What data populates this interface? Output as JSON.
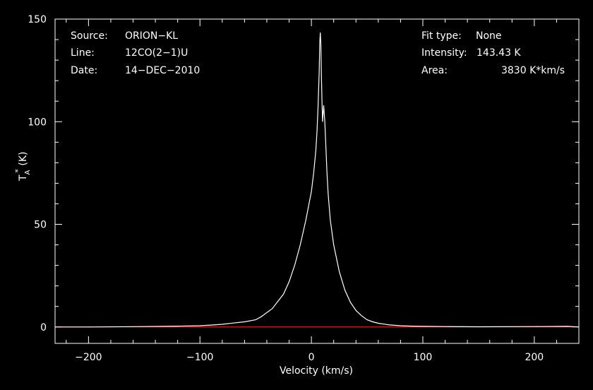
{
  "chart_data": {
    "type": "line",
    "xlabel": "Velocity (km/s)",
    "ylabel_main": "T",
    "ylabel_sub": "A",
    "ylabel_sup": "*",
    "ylabel_unit": " (K)",
    "xlim": [
      -230,
      240
    ],
    "ylim": [
      -8,
      150
    ],
    "xticks": [
      -200,
      -100,
      0,
      100,
      200
    ],
    "xtick_labels": [
      "−200",
      "−100",
      "0",
      "100",
      "200"
    ],
    "yticks": [
      0,
      50,
      100,
      150
    ],
    "ytick_labels": [
      "0",
      "50",
      "100",
      "150"
    ],
    "baseline": 0,
    "colors": {
      "background": "#000000",
      "foreground": "#ffffff",
      "baseline": "#ff2020"
    },
    "info": {
      "source_label": "Source:",
      "source_value": "ORION−KL",
      "line_label": "Line:",
      "line_value": "12CO(2−1)U",
      "date_label": "Date:",
      "date_value": "14−DEC−2010",
      "fit_label": "Fit type:",
      "fit_value": "None",
      "intensity_label": "Intensity:",
      "intensity_value": "143.43 K",
      "area_label": "Area:",
      "area_value": "3830 K*km/s"
    },
    "series": [
      {
        "x": [
          -230,
          -200,
          -150,
          -120,
          -100,
          -90,
          -80,
          -70,
          -60,
          -50,
          -45,
          -40,
          -35,
          -30,
          -25,
          -20,
          -15,
          -10,
          -5,
          0,
          2,
          4,
          5,
          6,
          7,
          7.5,
          8,
          8.5,
          9,
          9.5,
          10,
          11,
          12,
          13,
          14,
          15,
          17,
          20,
          25,
          30,
          35,
          40,
          45,
          50,
          55,
          60,
          65,
          70,
          80,
          90,
          100,
          120,
          150,
          200,
          230,
          240
        ],
        "y": [
          0,
          0,
          0.2,
          0.4,
          0.6,
          0.9,
          1.3,
          1.9,
          2.5,
          3.5,
          5,
          7,
          9,
          12.5,
          16,
          22,
          30,
          40,
          52,
          66,
          75,
          86,
          95,
          108,
          125,
          138,
          143.4,
          138,
          122,
          110,
          100,
          108,
          100,
          88,
          75,
          65,
          52,
          40,
          27,
          18,
          12,
          8,
          5.5,
          3.5,
          2.5,
          1.8,
          1.4,
          1.0,
          0.6,
          0.4,
          0.3,
          0.2,
          0.1,
          0.2,
          0.3,
          0
        ]
      }
    ]
  }
}
